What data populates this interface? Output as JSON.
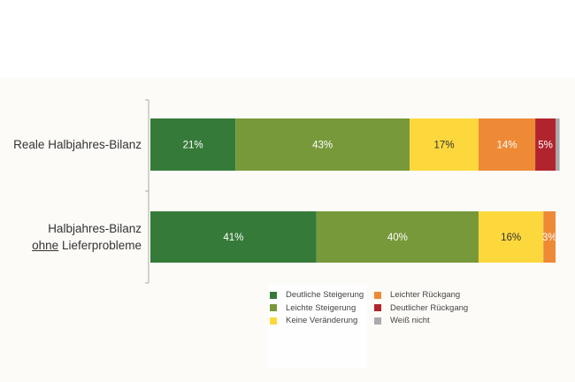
{
  "chart_data": {
    "type": "bar",
    "orientation": "horizontal",
    "stacked": true,
    "categories": [
      "Reale Halbjahres-Bilanz",
      "Halbjahres-Bilanz ohne Lieferprobleme"
    ],
    "category_labels": [
      {
        "lines": [
          "Reale Halbjahres-Bilanz"
        ]
      },
      {
        "lines": [
          "Halbjahres-Bilanz",
          "ohne Lieferprobleme"
        ],
        "underlined_word": "ohne",
        "rest": " Lieferprobleme"
      }
    ],
    "series": [
      {
        "name": "Deutliche Steigerung",
        "color": "#357a38",
        "label_color": "#ffffff",
        "values": [
          21,
          41
        ]
      },
      {
        "name": "Leichte Steigerung",
        "color": "#77993a",
        "label_color": "#ffffff",
        "values": [
          43,
          40
        ]
      },
      {
        "name": "Keine Veränderung",
        "color": "#fdd83d",
        "label_color": "#333333",
        "values": [
          17,
          16
        ]
      },
      {
        "name": "Leichter Rückgang",
        "color": "#ee8a35",
        "label_color": "#ffffff",
        "values": [
          14,
          3
        ]
      },
      {
        "name": "Deutlicher Rückgang",
        "color": "#b2242d",
        "label_color": "#ffffff",
        "values": [
          5,
          0
        ]
      },
      {
        "name": "Weiß nicht",
        "color": "#a9a9ae",
        "label_color": "#ffffff",
        "values": [
          1,
          0
        ]
      }
    ],
    "data_labels": [
      [
        "21%",
        "43%",
        "17%",
        "14%",
        "5%",
        ""
      ],
      [
        "41%",
        "40%",
        "16%",
        "3%",
        "",
        ""
      ]
    ],
    "xlim": [
      0,
      100
    ],
    "grid": false,
    "legend_position": "bottom"
  }
}
